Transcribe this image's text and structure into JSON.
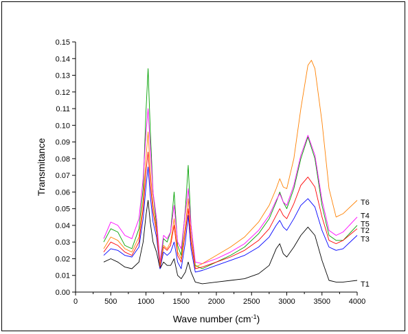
{
  "chart_data": {
    "type": "line",
    "xlabel_main": "Wave number (cm",
    "xlabel_sup": "-1",
    "xlabel_tail": ")",
    "ylabel": "Transmitance",
    "xlim": [
      0,
      4000
    ],
    "ylim": [
      0,
      0.15
    ],
    "x_ticks": [
      "0",
      "500",
      "1000",
      "1500",
      "2000",
      "2500",
      "3000",
      "3500",
      "4000"
    ],
    "x_tick_values": [
      0,
      500,
      1000,
      1500,
      2000,
      2500,
      3000,
      3500,
      4000
    ],
    "y_ticks": [
      "0.00",
      "0.01",
      "0.02",
      "0.03",
      "0.04",
      "0.05",
      "0.06",
      "0.07",
      "0.08",
      "0.09",
      "0.10",
      "0.11",
      "0.12",
      "0.13",
      "0.14",
      "0.15"
    ],
    "y_tick_values": [
      0.0,
      0.01,
      0.02,
      0.03,
      0.04,
      0.05,
      0.06,
      0.07,
      0.08,
      0.09,
      0.1,
      0.11,
      0.12,
      0.13,
      0.14,
      0.15
    ],
    "grid": false,
    "legend": "none",
    "series": [
      {
        "name": "T1",
        "color": "#000000",
        "x": [
          400,
          500,
          600,
          700,
          800,
          900,
          960,
          1000,
          1030,
          1060,
          1100,
          1150,
          1200,
          1250,
          1300,
          1350,
          1400,
          1450,
          1500,
          1560,
          1600,
          1640,
          1700,
          1800,
          2000,
          2200,
          2400,
          2600,
          2750,
          2850,
          2900,
          2950,
          3000,
          3100,
          3200,
          3300,
          3400,
          3500,
          3600,
          3700,
          3800,
          4000
        ],
        "y": [
          0.018,
          0.02,
          0.018,
          0.015,
          0.014,
          0.018,
          0.03,
          0.046,
          0.055,
          0.042,
          0.03,
          0.024,
          0.014,
          0.018,
          0.016,
          0.016,
          0.02,
          0.01,
          0.008,
          0.012,
          0.018,
          0.012,
          0.006,
          0.005,
          0.006,
          0.007,
          0.008,
          0.011,
          0.016,
          0.026,
          0.029,
          0.023,
          0.021,
          0.027,
          0.034,
          0.039,
          0.034,
          0.019,
          0.007,
          0.006,
          0.006,
          0.007
        ]
      },
      {
        "name": "T3",
        "color": "#0000ff",
        "x": [
          400,
          500,
          600,
          700,
          800,
          900,
          960,
          1000,
          1030,
          1060,
          1100,
          1150,
          1200,
          1250,
          1300,
          1350,
          1400,
          1450,
          1500,
          1560,
          1600,
          1640,
          1700,
          1800,
          2000,
          2200,
          2400,
          2600,
          2750,
          2850,
          2900,
          2950,
          3000,
          3100,
          3200,
          3300,
          3400,
          3500,
          3600,
          3700,
          3800,
          4000
        ],
        "y": [
          0.022,
          0.026,
          0.025,
          0.022,
          0.021,
          0.027,
          0.044,
          0.063,
          0.075,
          0.058,
          0.042,
          0.033,
          0.014,
          0.024,
          0.022,
          0.024,
          0.03,
          0.018,
          0.014,
          0.03,
          0.046,
          0.026,
          0.012,
          0.013,
          0.016,
          0.019,
          0.022,
          0.027,
          0.033,
          0.04,
          0.043,
          0.039,
          0.037,
          0.044,
          0.052,
          0.056,
          0.051,
          0.037,
          0.027,
          0.025,
          0.026,
          0.034
        ]
      },
      {
        "name": "T2",
        "color": "#00a000",
        "x": [
          400,
          500,
          600,
          700,
          800,
          900,
          960,
          1000,
          1030,
          1060,
          1100,
          1150,
          1200,
          1250,
          1300,
          1350,
          1400,
          1450,
          1500,
          1560,
          1600,
          1640,
          1700,
          1800,
          2000,
          2200,
          2400,
          2600,
          2750,
          2850,
          2900,
          2950,
          3000,
          3100,
          3200,
          3300,
          3400,
          3500,
          3600,
          3700,
          3800,
          4000
        ],
        "y": [
          0.03,
          0.038,
          0.036,
          0.028,
          0.026,
          0.038,
          0.062,
          0.108,
          0.134,
          0.098,
          0.06,
          0.04,
          0.016,
          0.032,
          0.03,
          0.036,
          0.06,
          0.028,
          0.022,
          0.05,
          0.076,
          0.04,
          0.016,
          0.014,
          0.018,
          0.022,
          0.027,
          0.035,
          0.044,
          0.054,
          0.06,
          0.054,
          0.05,
          0.062,
          0.08,
          0.093,
          0.08,
          0.052,
          0.034,
          0.031,
          0.031,
          0.04
        ]
      },
      {
        "name": "T5",
        "color": "#ff00ff",
        "x": [
          400,
          500,
          600,
          700,
          800,
          900,
          960,
          1000,
          1030,
          1060,
          1100,
          1150,
          1200,
          1250,
          1300,
          1350,
          1400,
          1450,
          1500,
          1560,
          1600,
          1640,
          1700,
          1800,
          2000,
          2200,
          2400,
          2600,
          2750,
          2850,
          2900,
          2950,
          3000,
          3100,
          3200,
          3300,
          3400,
          3500,
          3600,
          3700,
          3800,
          4000
        ],
        "y": [
          0.032,
          0.042,
          0.04,
          0.034,
          0.032,
          0.044,
          0.068,
          0.095,
          0.11,
          0.088,
          0.06,
          0.044,
          0.018,
          0.034,
          0.032,
          0.036,
          0.052,
          0.03,
          0.026,
          0.048,
          0.062,
          0.04,
          0.018,
          0.017,
          0.02,
          0.024,
          0.029,
          0.037,
          0.046,
          0.055,
          0.059,
          0.054,
          0.052,
          0.064,
          0.082,
          0.094,
          0.082,
          0.055,
          0.037,
          0.034,
          0.036,
          0.045
        ]
      },
      {
        "name": "T4",
        "color": "#ff0000",
        "x": [
          400,
          500,
          600,
          700,
          800,
          900,
          960,
          1000,
          1030,
          1060,
          1100,
          1150,
          1200,
          1250,
          1300,
          1350,
          1400,
          1450,
          1500,
          1560,
          1600,
          1640,
          1700,
          1800,
          2000,
          2200,
          2400,
          2600,
          2750,
          2850,
          2900,
          2950,
          3000,
          3100,
          3200,
          3300,
          3400,
          3500,
          3600,
          3700,
          3800,
          4000
        ],
        "y": [
          0.024,
          0.03,
          0.028,
          0.024,
          0.022,
          0.03,
          0.05,
          0.072,
          0.084,
          0.066,
          0.048,
          0.036,
          0.015,
          0.027,
          0.025,
          0.028,
          0.04,
          0.022,
          0.018,
          0.036,
          0.05,
          0.03,
          0.014,
          0.015,
          0.018,
          0.021,
          0.025,
          0.031,
          0.038,
          0.046,
          0.05,
          0.046,
          0.044,
          0.053,
          0.064,
          0.069,
          0.063,
          0.045,
          0.031,
          0.029,
          0.031,
          0.038
        ]
      },
      {
        "name": "T6",
        "color": "#ff8000",
        "x": [
          400,
          500,
          600,
          700,
          800,
          900,
          960,
          1000,
          1030,
          1060,
          1100,
          1150,
          1200,
          1250,
          1300,
          1350,
          1400,
          1450,
          1500,
          1560,
          1600,
          1640,
          1700,
          1800,
          2000,
          2200,
          2400,
          2600,
          2750,
          2850,
          2900,
          2950,
          3000,
          3100,
          3200,
          3300,
          3350,
          3400,
          3500,
          3600,
          3700,
          3800,
          4000
        ],
        "y": [
          0.026,
          0.033,
          0.031,
          0.026,
          0.024,
          0.033,
          0.055,
          0.08,
          0.096,
          0.074,
          0.052,
          0.038,
          0.016,
          0.028,
          0.026,
          0.03,
          0.044,
          0.024,
          0.02,
          0.04,
          0.056,
          0.034,
          0.015,
          0.017,
          0.022,
          0.027,
          0.033,
          0.042,
          0.052,
          0.062,
          0.068,
          0.063,
          0.062,
          0.08,
          0.11,
          0.136,
          0.139,
          0.134,
          0.102,
          0.062,
          0.045,
          0.047,
          0.055
        ]
      }
    ],
    "series_labels": [
      "T6",
      "T4",
      "T5",
      "T2",
      "T3",
      "T1"
    ],
    "series_label_values": [
      0.054,
      0.046,
      0.041,
      0.037,
      0.032,
      0.005
    ]
  }
}
